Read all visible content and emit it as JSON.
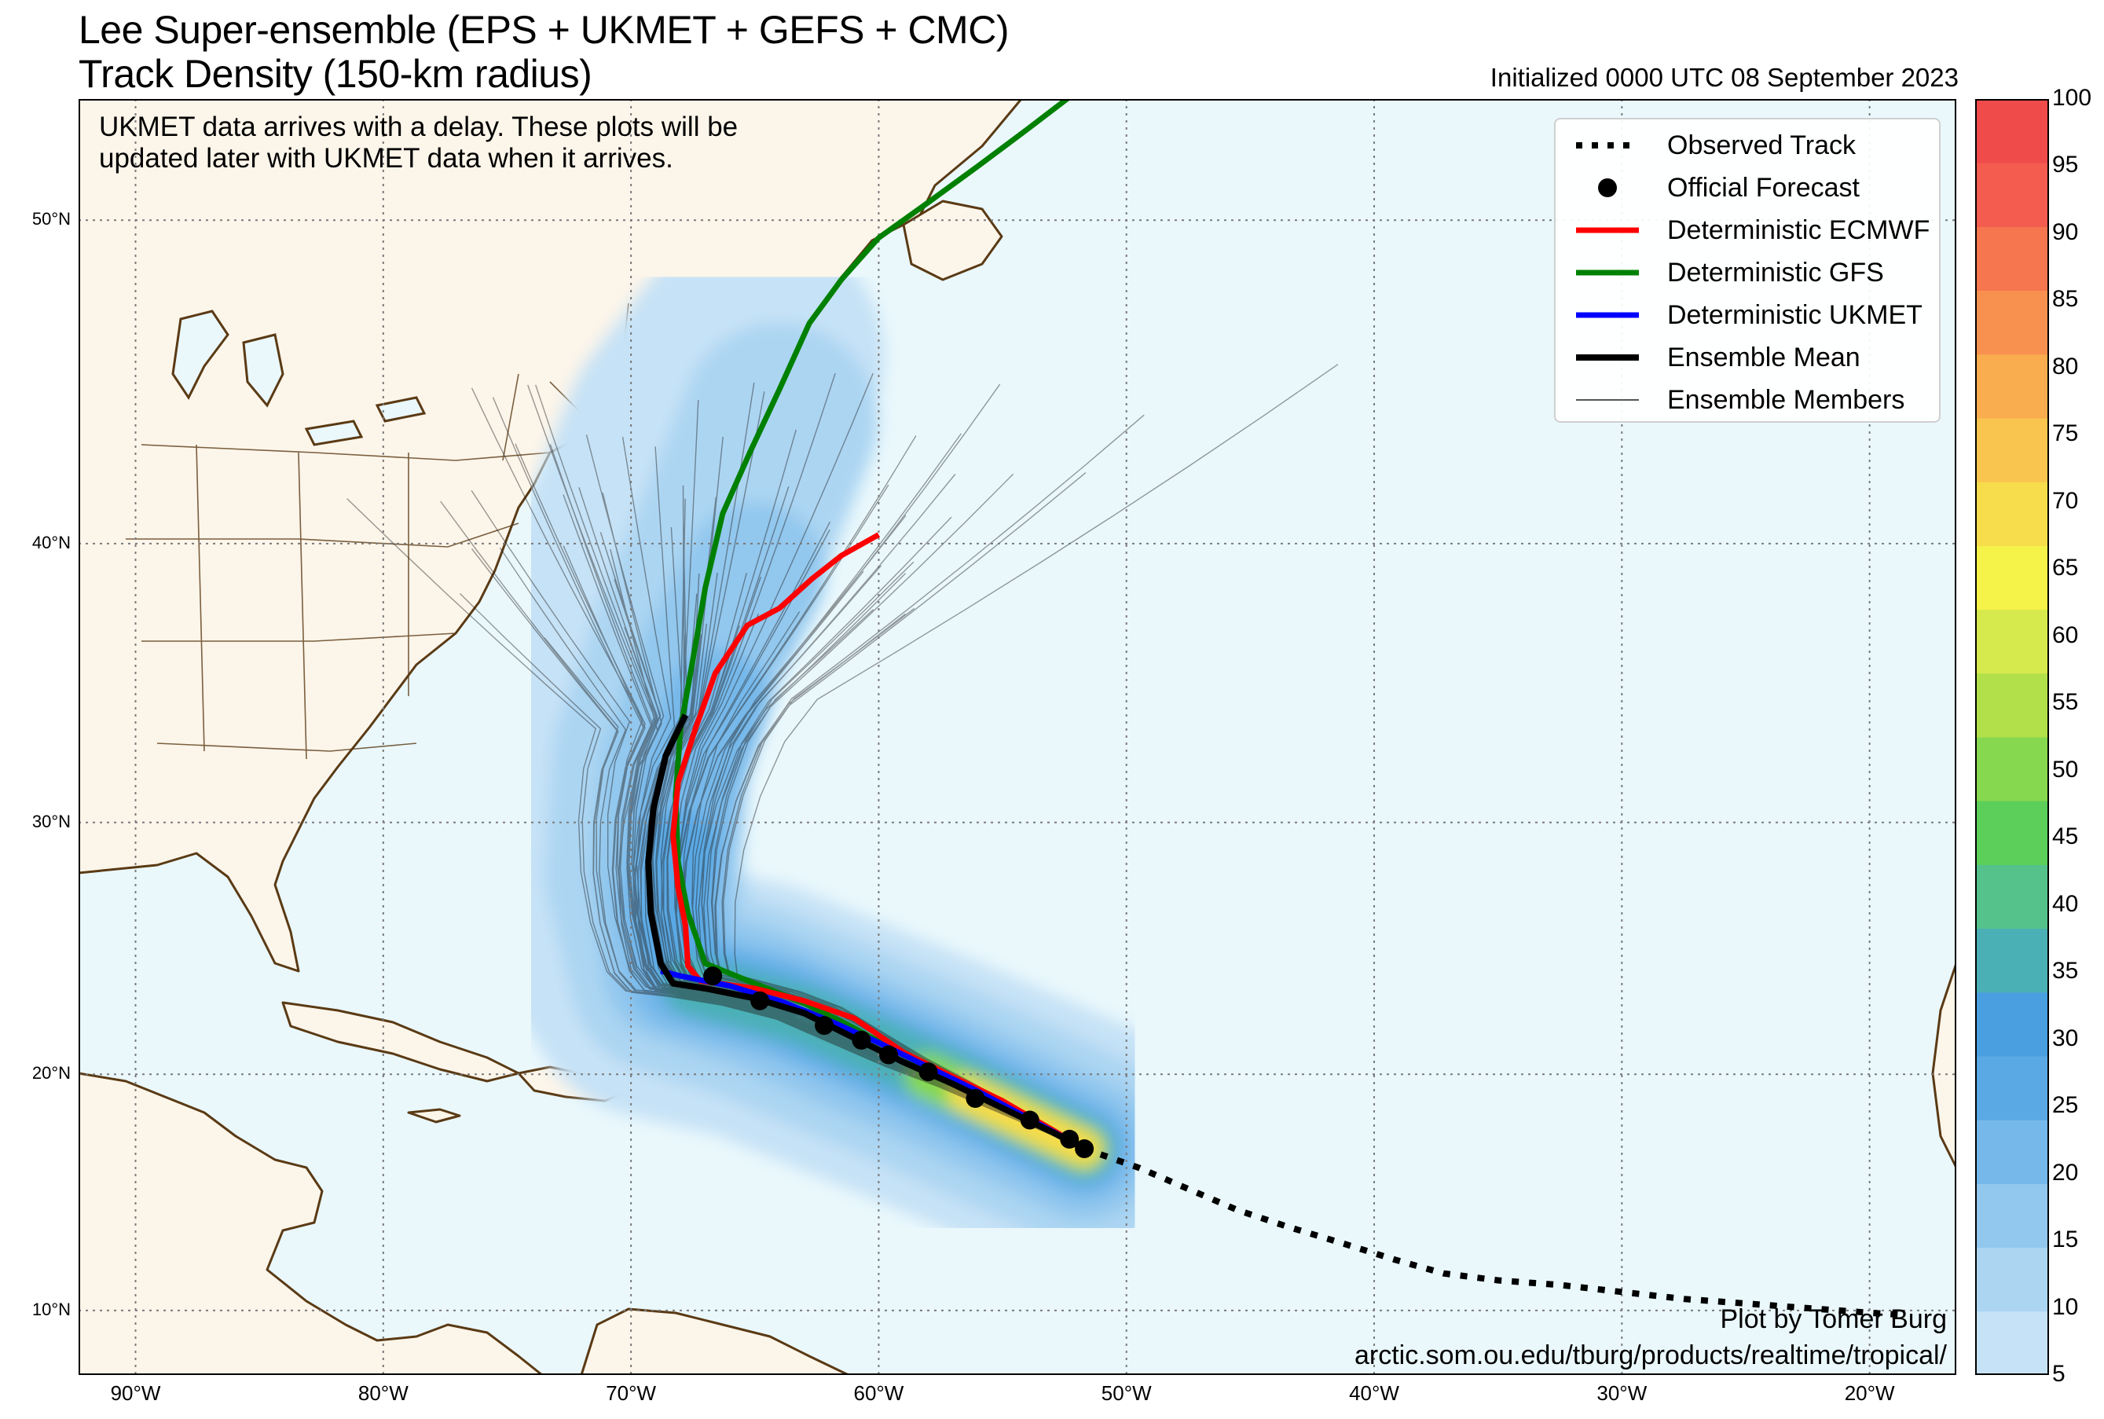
{
  "title_line1": "Lee Super-ensemble (EPS + UKMET + GEFS + CMC)",
  "title_line2": "Track Density (150-km radius)",
  "initialized": "Initialized 0000 UTC 08 September 2023",
  "note_line1": "UKMET data arrives with a delay. These plots will be",
  "note_line2": "updated later with UKMET data when it arrives.",
  "credit_line1": "Plot by Tomer Burg",
  "credit_line2": "arctic.som.ou.edu/tburg/products/realtime/tropical/",
  "legend": [
    {
      "label": "Observed Track",
      "style": "dotted",
      "color": "#000000"
    },
    {
      "label": "Official Forecast",
      "style": "dot",
      "color": "#000000"
    },
    {
      "label": "Deterministic ECMWF",
      "style": "line",
      "color": "#ff0000"
    },
    {
      "label": "Deterministic GFS",
      "style": "line",
      "color": "#008000"
    },
    {
      "label": "Deterministic UKMET",
      "style": "line",
      "color": "#0000ff"
    },
    {
      "label": "Ensemble Mean",
      "style": "line",
      "color": "#000000"
    },
    {
      "label": "Ensemble Members",
      "style": "thin",
      "color": "#555555"
    }
  ],
  "lon_labels": [
    "90°W",
    "80°W",
    "70°W",
    "60°W",
    "50°W",
    "40°W",
    "30°W",
    "20°W"
  ],
  "lat_labels": [
    "10°N",
    "20°N",
    "30°N",
    "40°N",
    "50°N"
  ],
  "colorbar": {
    "ticks": [
      "5",
      "10",
      "15",
      "20",
      "25",
      "30",
      "35",
      "40",
      "45",
      "50",
      "55",
      "60",
      "65",
      "70",
      "75",
      "80",
      "85",
      "90",
      "95",
      "100"
    ],
    "colors": [
      "#c6e2f6",
      "#acd5f2",
      "#92c7ee",
      "#76b8ea",
      "#5aa9e5",
      "#4a9fe0",
      "#4bb0b6",
      "#55c18b",
      "#5ccf5a",
      "#86d84f",
      "#b1e04a",
      "#d6e94d",
      "#f5f24a",
      "#f7dc4c",
      "#f9c54e",
      "#f9ad4f",
      "#f8914f",
      "#f6764f",
      "#f45c4f",
      "#f04b4b"
    ]
  },
  "colors": {
    "ocean": "#eaf8fc",
    "land": "#fcf5ea",
    "coast": "#5a3a14",
    "grid": "#7a7a7a"
  },
  "observed_track": [
    [
      -51.7,
      16.9
    ],
    [
      -49.5,
      16.1
    ],
    [
      -47.5,
      15.2
    ],
    [
      -45.5,
      14.3
    ],
    [
      -43.5,
      13.6
    ],
    [
      -41.3,
      12.9
    ],
    [
      -39.2,
      12.2
    ],
    [
      -37.2,
      11.6
    ],
    [
      -35,
      11.3
    ],
    [
      -32.5,
      11.1
    ],
    [
      -30,
      10.8
    ],
    [
      -27.5,
      10.5
    ],
    [
      -25,
      10.3
    ],
    [
      -22.5,
      10.1
    ],
    [
      -20,
      9.9
    ],
    [
      -18.5,
      9.8
    ]
  ],
  "official_forecast": [
    [
      -51.7,
      16.9
    ],
    [
      -52.3,
      17.3
    ],
    [
      -53.9,
      18.1
    ],
    [
      -56.1,
      19
    ],
    [
      -58,
      20.1
    ],
    [
      -59.6,
      20.8
    ],
    [
      -60.7,
      21.4
    ],
    [
      -62.2,
      22
    ],
    [
      -64.8,
      23
    ],
    [
      -66.7,
      24
    ]
  ],
  "ecmwf": [
    [
      -51.7,
      16.9
    ],
    [
      -53,
      17.7
    ],
    [
      -55,
      18.9
    ],
    [
      -57,
      19.9
    ],
    [
      -59,
      20.9
    ],
    [
      -61,
      22.3
    ],
    [
      -63,
      23
    ],
    [
      -65,
      23.5
    ],
    [
      -67.2,
      23.8
    ],
    [
      -67.7,
      24.4
    ],
    [
      -67.8,
      26
    ],
    [
      -68.1,
      27.5
    ],
    [
      -68.3,
      29.5
    ],
    [
      -68.1,
      31.5
    ],
    [
      -67.4,
      33.5
    ],
    [
      -66.6,
      35.5
    ],
    [
      -65.3,
      37.2
    ],
    [
      -64,
      37.8
    ],
    [
      -62.7,
      38.8
    ],
    [
      -61.5,
      39.6
    ],
    [
      -60,
      40.3
    ]
  ],
  "gfs": [
    [
      -51.7,
      16.9
    ],
    [
      -53,
      17.7
    ],
    [
      -55,
      18.8
    ],
    [
      -57.1,
      19.8
    ],
    [
      -59,
      20.8
    ],
    [
      -61,
      21.9
    ],
    [
      -63,
      22.9
    ],
    [
      -65,
      23.7
    ],
    [
      -67,
      24.5
    ],
    [
      -67.7,
      26.5
    ],
    [
      -68.1,
      28.5
    ],
    [
      -68.2,
      31
    ],
    [
      -68,
      33.5
    ],
    [
      -67.5,
      36
    ],
    [
      -67,
      38.5
    ],
    [
      -66.3,
      41
    ],
    [
      -65.2,
      43
    ],
    [
      -64,
      45
    ],
    [
      -62.8,
      47
    ],
    [
      -61.5,
      48.3
    ],
    [
      -60,
      49.5
    ],
    [
      -58,
      50.5
    ],
    [
      -56,
      51.5
    ],
    [
      -54,
      52.5
    ],
    [
      -52,
      53.5
    ]
  ],
  "ukmet": [
    [
      -51.7,
      16.9
    ],
    [
      -54,
      18.2
    ],
    [
      -56,
      19.3
    ],
    [
      -58,
      20.3
    ],
    [
      -60,
      21.3
    ],
    [
      -62,
      22.2
    ],
    [
      -64,
      23
    ],
    [
      -66,
      23.6
    ],
    [
      -68,
      24
    ],
    [
      -68.8,
      24.2
    ]
  ],
  "ensemble_mean": [
    [
      -51.7,
      16.9
    ],
    [
      -53,
      17.6
    ],
    [
      -55,
      18.6
    ],
    [
      -57,
      19.6
    ],
    [
      -59,
      20.5
    ],
    [
      -61,
      21.5
    ],
    [
      -63,
      22.5
    ],
    [
      -65,
      23.1
    ],
    [
      -67,
      23.5
    ],
    [
      -68.3,
      23.7
    ],
    [
      -68.8,
      24.5
    ],
    [
      -69.2,
      26.5
    ],
    [
      -69.3,
      28.5
    ],
    [
      -69.1,
      30.5
    ],
    [
      -68.6,
      32.5
    ],
    [
      -67.8,
      34
    ]
  ]
}
